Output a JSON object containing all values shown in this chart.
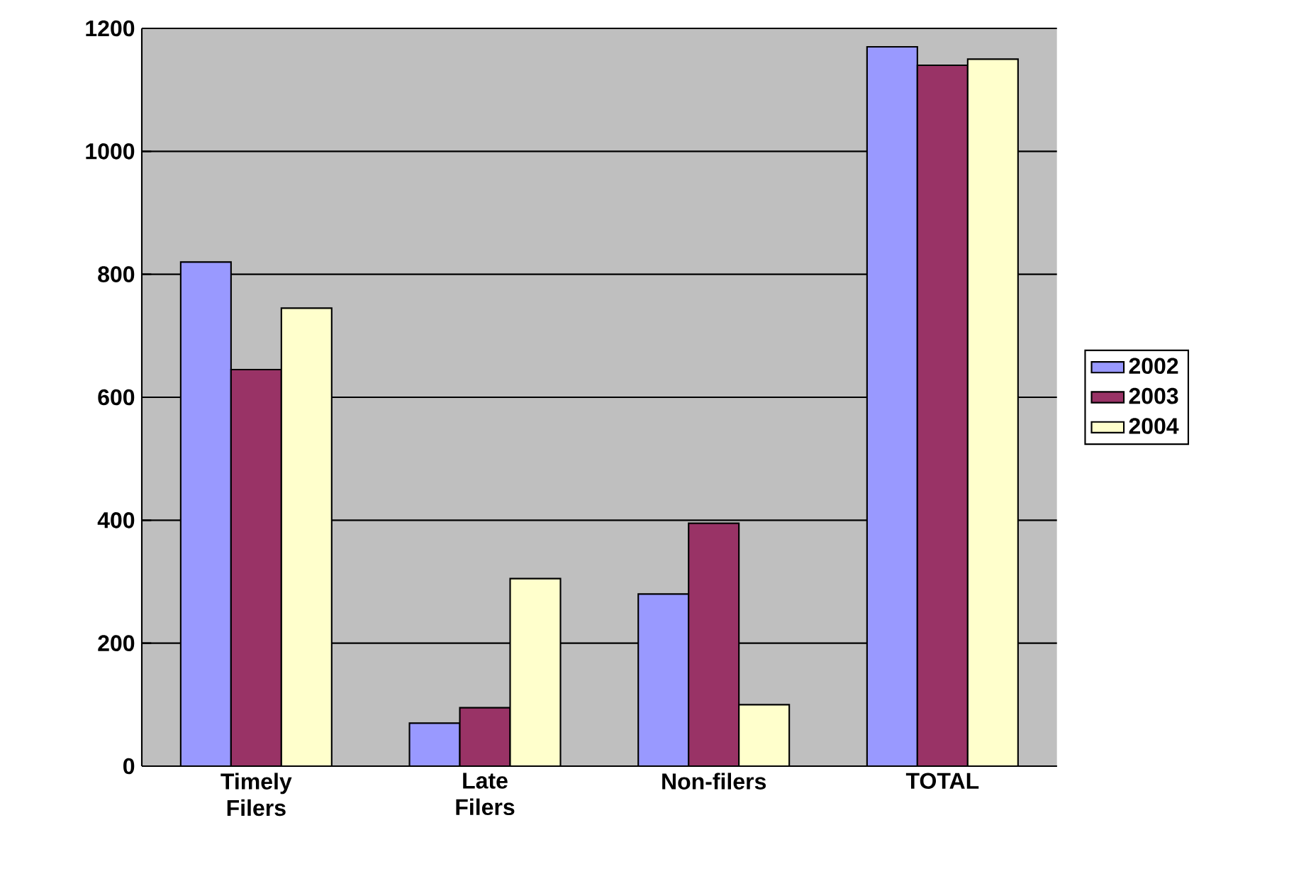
{
  "chart_data": {
    "type": "bar",
    "categories": [
      "Timely Filers",
      "Late Filers",
      "Non-filers",
      "TOTAL"
    ],
    "series": [
      {
        "name": "2002",
        "color": "#9999ff",
        "values": [
          820,
          70,
          280,
          1170
        ]
      },
      {
        "name": "2003",
        "color": "#993366",
        "values": [
          645,
          95,
          395,
          1140
        ]
      },
      {
        "name": "2004",
        "color": "#ffffcc",
        "values": [
          745,
          305,
          100,
          1150
        ]
      }
    ],
    "ylim": [
      0,
      1200
    ],
    "yticks": [
      0,
      200,
      400,
      600,
      800,
      1000,
      1200
    ],
    "grid": "y",
    "legend": "right"
  }
}
